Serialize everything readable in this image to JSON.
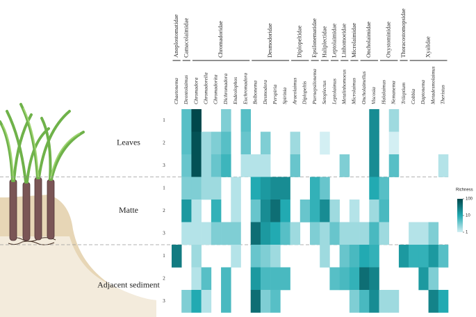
{
  "chart_data": {
    "type": "heatmap",
    "families": [
      {
        "name": "Anoplostomatidae",
        "genera": [
          "Chaetonema"
        ]
      },
      {
        "name": "Camacolaimidae",
        "genera": [
          "Deontolaimus"
        ]
      },
      {
        "name": "Chromadoridae",
        "genera": [
          "Chromadora",
          "Chromadorella",
          "Chromadorita",
          "Dichromadora",
          "Endeolophos",
          "Euchromadora"
        ]
      },
      {
        "name": "Desmodoridae",
        "genera": [
          "Bolbonema",
          "Desmodora",
          "Perspiria",
          "Spirinia"
        ]
      },
      {
        "name": "Diplopeltidae",
        "genera": [
          "Araeolaimus",
          "Diplopeltis"
        ]
      },
      {
        "name": "Epsilonematidae",
        "genera": [
          "Pternepsilonema"
        ]
      },
      {
        "name": "Haliplectidae",
        "genera": [
          "Setoplectus"
        ]
      },
      {
        "name": "Leptolaimidae",
        "genera": [
          "Leptolaimus"
        ]
      },
      {
        "name": "Linhomoeidae",
        "genera": [
          "Metalinhomoeus"
        ]
      },
      {
        "name": "Microlaimidae",
        "genera": [
          "Microlaimus"
        ]
      },
      {
        "name": "Oncholaimidae",
        "genera": [
          "Oncholaimellus",
          "Viscosia"
        ]
      },
      {
        "name": "Oxystominidae",
        "genera": [
          "Halalaimus",
          "Nemanema"
        ]
      },
      {
        "name": "Thoracostomopsidae",
        "genera": [
          "Trileptium"
        ]
      },
      {
        "name": "Xyalidae",
        "genera": [
          "Cobbia",
          "Daptonema",
          "Metadesmolaimus",
          "Theristus"
        ]
      }
    ],
    "groups": [
      {
        "name": "Leaves",
        "rows": [
          "1",
          "2",
          "3"
        ]
      },
      {
        "name": "Matte",
        "rows": [
          "1",
          "2",
          "3"
        ]
      },
      {
        "name": "Adjacent sediment",
        "rows": [
          "1",
          "2",
          "3"
        ]
      }
    ],
    "values": [
      [
        null,
        5,
        100,
        null,
        null,
        3,
        null,
        5,
        null,
        null,
        null,
        null,
        null,
        null,
        null,
        null,
        null,
        null,
        null,
        null,
        20,
        null,
        2,
        null,
        null,
        null,
        null,
        null
      ],
      [
        null,
        5,
        80,
        2,
        3,
        5,
        null,
        4,
        null,
        3,
        null,
        null,
        2,
        null,
        null,
        1,
        null,
        null,
        null,
        null,
        20,
        null,
        1,
        null,
        null,
        null,
        null,
        null
      ],
      [
        null,
        4,
        80,
        2,
        4,
        7,
        null,
        1.5,
        1.5,
        1.5,
        null,
        null,
        4,
        null,
        null,
        null,
        null,
        3,
        null,
        null,
        20,
        null,
        5,
        null,
        null,
        null,
        null,
        1.5
      ],
      [
        null,
        3,
        3,
        2,
        2,
        null,
        1.5,
        null,
        10,
        15,
        20,
        20,
        null,
        null,
        8,
        4,
        null,
        null,
        null,
        null,
        10,
        5,
        null,
        null,
        null,
        null,
        null,
        null
      ],
      [
        null,
        15,
        1.5,
        null,
        8,
        null,
        1.5,
        null,
        4,
        20,
        40,
        10,
        null,
        4,
        8,
        20,
        2,
        null,
        1.5,
        null,
        2,
        6,
        null,
        null,
        null,
        null,
        null,
        null
      ],
      [
        null,
        1.5,
        1.5,
        1.5,
        3,
        3,
        3,
        null,
        40,
        15,
        10,
        5,
        2,
        null,
        3,
        2,
        4,
        2,
        2,
        2,
        6,
        2,
        null,
        null,
        1.5,
        1.5,
        3,
        null
      ],
      [
        30,
        null,
        2,
        null,
        null,
        null,
        1.5,
        null,
        4,
        3,
        2,
        null,
        null,
        null,
        null,
        2,
        null,
        4,
        6,
        10,
        8,
        null,
        null,
        15,
        8,
        8,
        15,
        5
      ],
      [
        null,
        null,
        1.5,
        5,
        null,
        6,
        null,
        null,
        15,
        6,
        6,
        6,
        null,
        null,
        null,
        null,
        5,
        6,
        8,
        40,
        25,
        null,
        null,
        null,
        null,
        15,
        3,
        null
      ],
      [
        null,
        3,
        10,
        1.5,
        null,
        6,
        null,
        null,
        40,
        3,
        5,
        null,
        null,
        null,
        null,
        null,
        null,
        null,
        3,
        6,
        20,
        2,
        2,
        null,
        null,
        null,
        25,
        10
      ]
    ],
    "colorbar_title": "Richness",
    "zscale": "log",
    "zlim": [
      1,
      100
    ],
    "zticks": [
      1,
      10,
      100
    ],
    "colors": [
      "#d3eff3",
      "#22aab2",
      "#00474b"
    ]
  }
}
